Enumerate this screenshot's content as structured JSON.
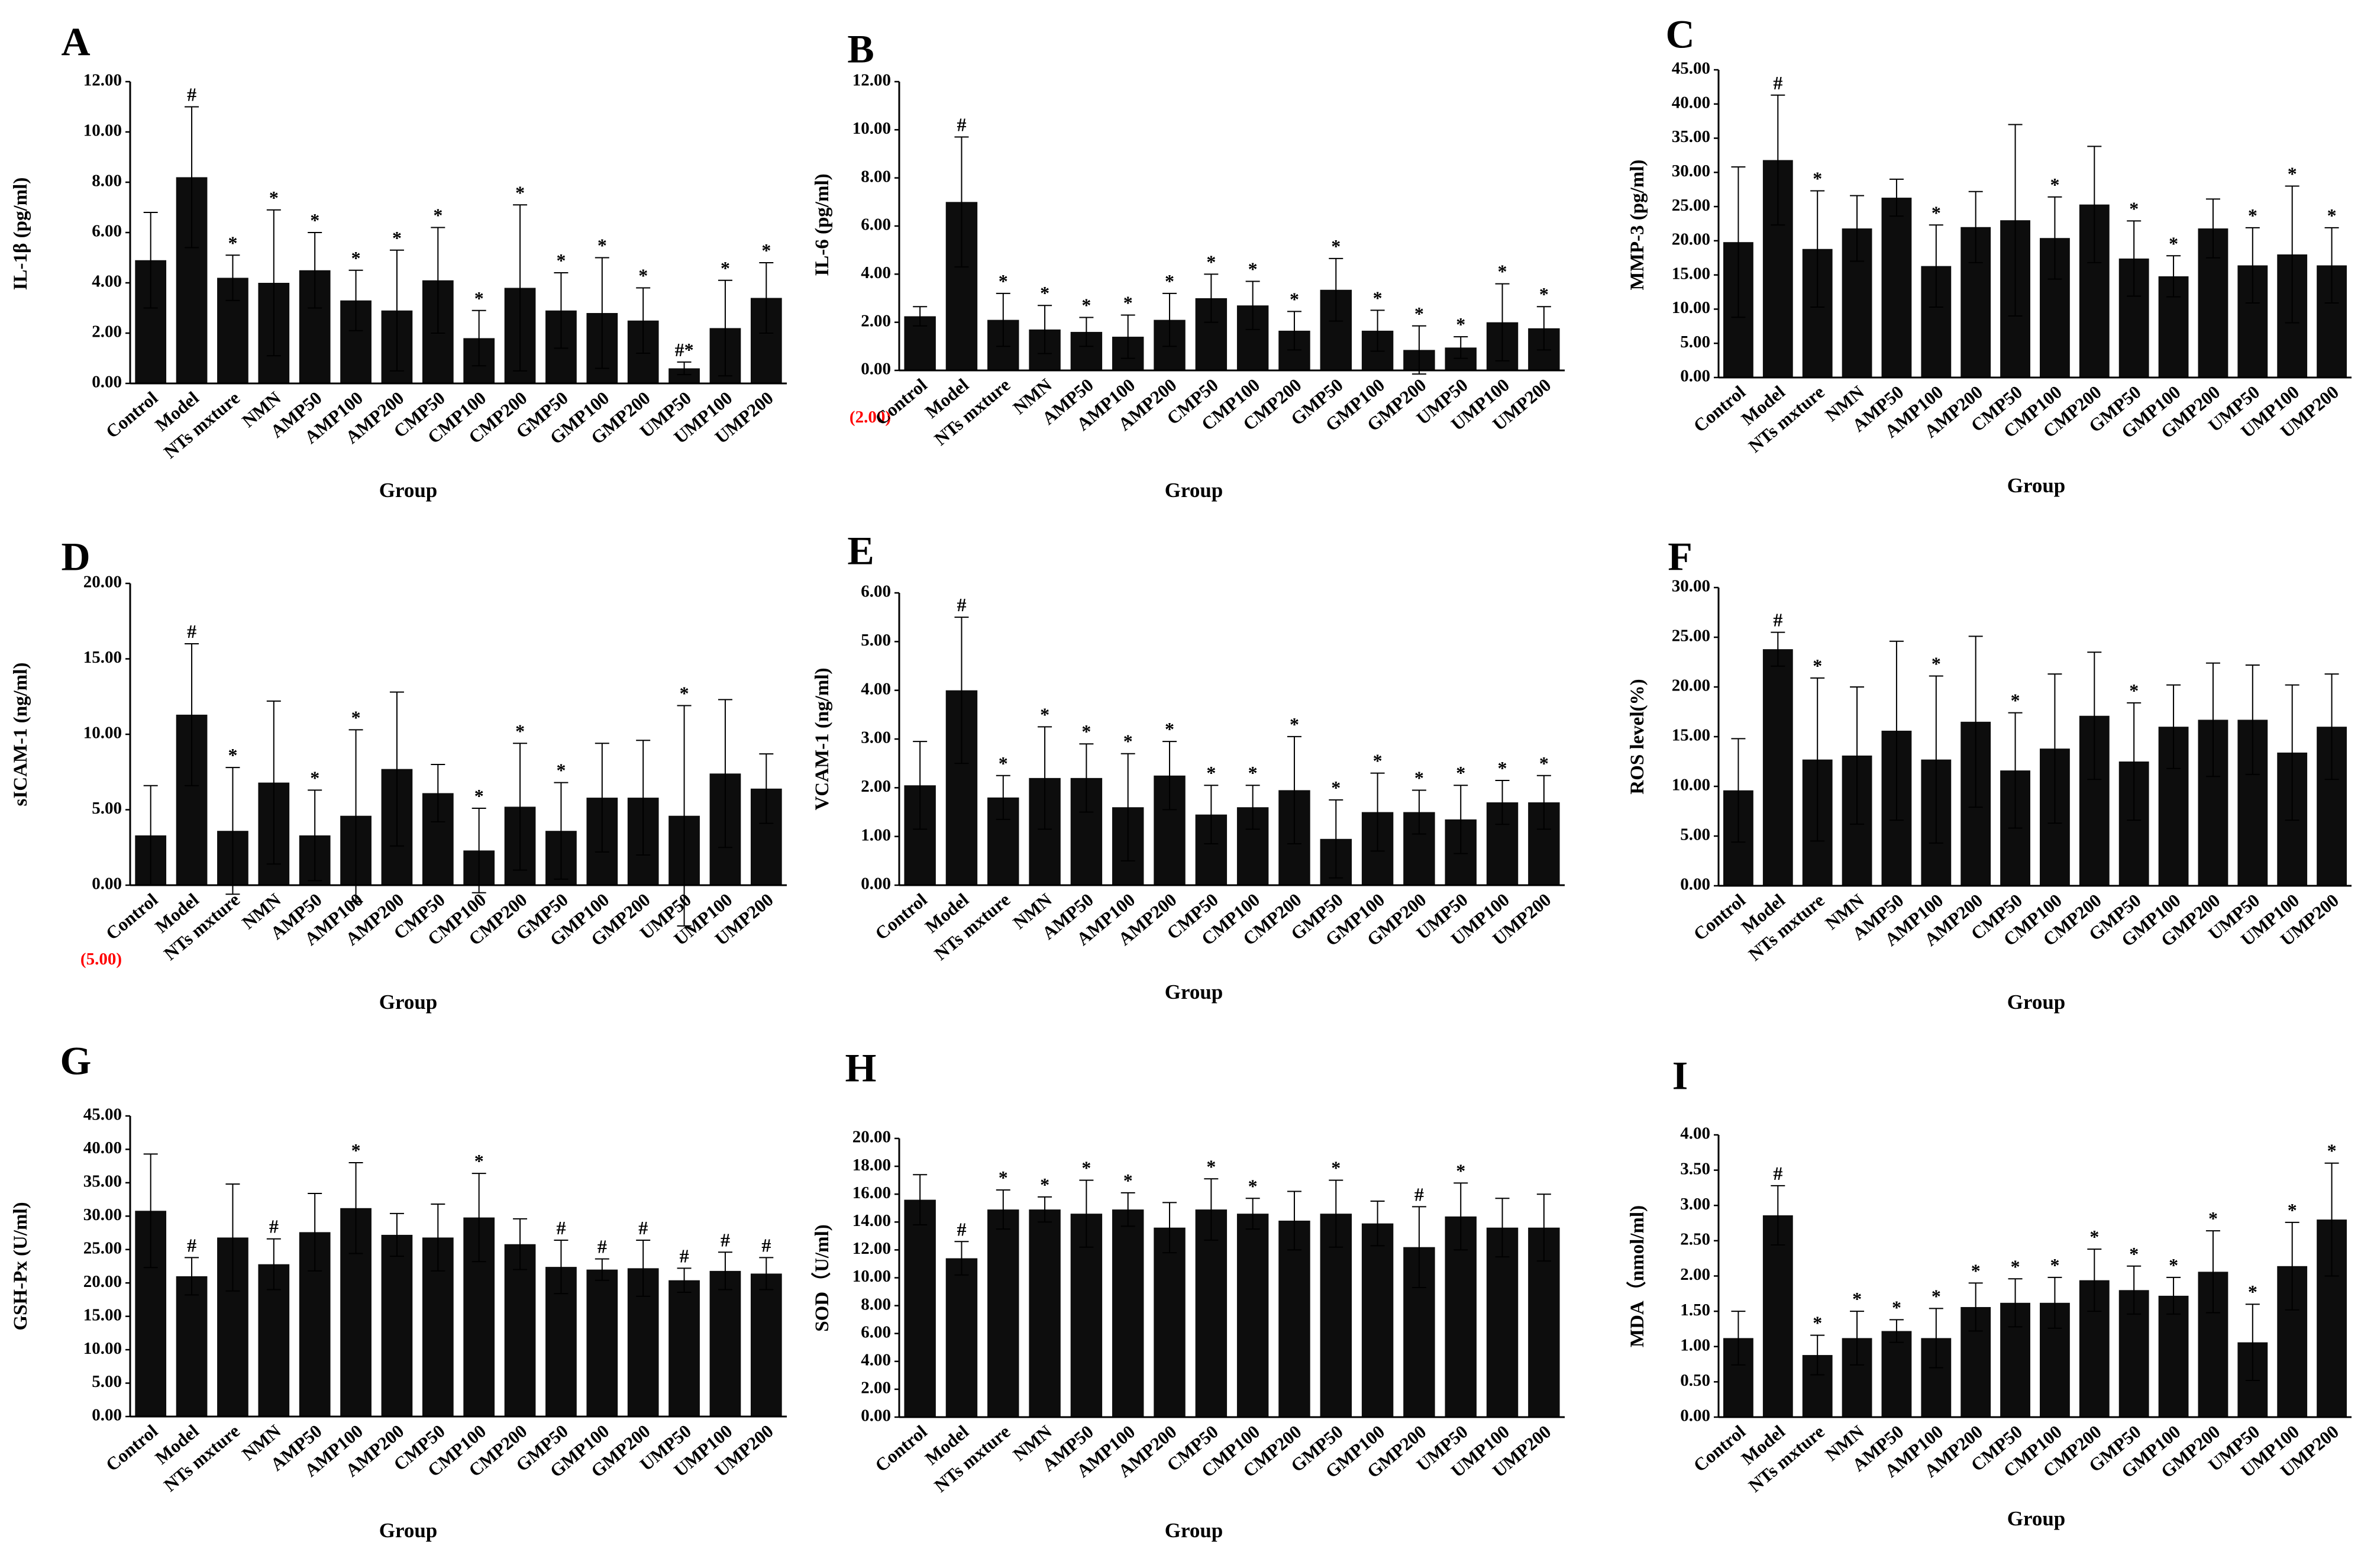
{
  "figure_title": "",
  "chart_data": [
    {
      "panel": "A",
      "type": "bar",
      "title": "",
      "xlabel": "Group",
      "ylabel": "IL-1β (pg/ml)",
      "ylim": [
        0,
        12
      ],
      "yticks": [
        "0.00",
        "2.00",
        "4.00",
        "6.00",
        "8.00",
        "10.00",
        "12.00"
      ],
      "categories": [
        "Control",
        "Model",
        "NTs mxture",
        "NMN",
        "AMP50",
        "AMP100",
        "AMP200",
        "CMP50",
        "CMP100",
        "CMP200",
        "GMP50",
        "GMP100",
        "GMP200",
        "UMP50",
        "UMP100",
        "UMP200"
      ],
      "values": [
        4.9,
        8.2,
        4.2,
        4.0,
        4.5,
        3.3,
        2.9,
        4.1,
        1.8,
        3.8,
        2.9,
        2.8,
        2.5,
        0.6,
        2.2,
        3.4
      ],
      "errors": [
        1.9,
        2.8,
        0.9,
        2.9,
        1.5,
        1.2,
        2.4,
        2.1,
        1.1,
        3.3,
        1.5,
        2.2,
        1.3,
        0.25,
        1.9,
        1.4
      ],
      "marks": [
        "",
        "#",
        "*",
        "*",
        "*",
        "*",
        "*",
        "*",
        "*",
        "*",
        "*",
        "*",
        "*",
        "#*",
        "*",
        "*"
      ]
    },
    {
      "panel": "B",
      "type": "bar",
      "title": "",
      "xlabel": "Group",
      "ylabel": "IL-6 (pg/ml)",
      "ylim": [
        0,
        12
      ],
      "yticks": [
        "0.00",
        "2.00",
        "4.00",
        "6.00",
        "8.00",
        "10.00",
        "12.00"
      ],
      "neg_tick": "(2.00)",
      "categories": [
        "Control",
        "Model",
        "NTs mxture",
        "NMN",
        "AMP50",
        "AMP100",
        "AMP200",
        "CMP50",
        "CMP100",
        "CMP200",
        "GMP50",
        "GMP100",
        "GMP200",
        "UMP50",
        "UMP100",
        "UMP200"
      ],
      "values": [
        2.25,
        7.0,
        2.1,
        1.7,
        1.6,
        1.4,
        2.1,
        3.0,
        2.7,
        1.65,
        3.35,
        1.65,
        0.85,
        0.95,
        2.0,
        1.75
      ],
      "errors": [
        0.4,
        2.7,
        1.1,
        1.0,
        0.6,
        0.9,
        1.1,
        1.0,
        1.0,
        0.8,
        1.3,
        0.85,
        1.0,
        0.45,
        1.6,
        0.9
      ],
      "marks": [
        "",
        "#",
        "*",
        "*",
        "*",
        "*",
        "*",
        "*",
        "*",
        "*",
        "*",
        "*",
        "*",
        "*",
        "*",
        "*"
      ]
    },
    {
      "panel": "C",
      "type": "bar",
      "title": "",
      "xlabel": "Group",
      "ylabel": "MMP-3 (pg/ml)",
      "ylim": [
        0,
        45
      ],
      "yticks": [
        "0.00",
        "5.00",
        "10.00",
        "15.00",
        "20.00",
        "25.00",
        "30.00",
        "35.00",
        "40.00",
        "45.00"
      ],
      "categories": [
        "Control",
        "Model",
        "NTs mxture",
        "NMN",
        "AMP50",
        "AMP100",
        "AMP200",
        "CMP50",
        "CMP100",
        "CMP200",
        "GMP50",
        "GMP100",
        "GMP200",
        "UMP50",
        "UMP100",
        "UMP200"
      ],
      "values": [
        19.8,
        31.8,
        18.8,
        21.8,
        26.3,
        16.3,
        22.0,
        23.0,
        20.4,
        25.3,
        17.4,
        14.8,
        21.8,
        16.4,
        18.0,
        16.4
      ],
      "errors": [
        11.0,
        9.5,
        8.5,
        4.8,
        2.7,
        6.0,
        5.2,
        14.0,
        6.0,
        8.5,
        5.5,
        3.0,
        4.3,
        5.5,
        10.0,
        5.5
      ],
      "marks": [
        "",
        "#",
        "*",
        "",
        "",
        "*",
        "",
        "",
        "*",
        "",
        "*",
        "*",
        "",
        "*",
        "*",
        "*"
      ]
    },
    {
      "panel": "D",
      "type": "bar",
      "title": "",
      "xlabel": "Group",
      "ylabel": "sICAM-1 (ng/ml)",
      "ylim": [
        0,
        20
      ],
      "yticks": [
        "0.00",
        "5.00",
        "10.00",
        "15.00",
        "20.00"
      ],
      "neg_tick": "(5.00)",
      "categories": [
        "Control",
        "Model",
        "NTs mxture",
        "NMN",
        "AMP50",
        "AMP100",
        "AMP200",
        "CMP50",
        "CMP100",
        "CMP200",
        "GMP50",
        "GMP100",
        "GMP200",
        "UMP50",
        "UMP100",
        "UMP200"
      ],
      "values": [
        3.3,
        11.3,
        3.6,
        6.8,
        3.3,
        4.6,
        7.7,
        6.1,
        2.3,
        5.2,
        3.6,
        5.8,
        5.8,
        4.6,
        7.4,
        6.4
      ],
      "errors": [
        3.3,
        4.7,
        4.2,
        5.4,
        3.0,
        5.7,
        5.1,
        1.9,
        2.8,
        4.2,
        3.2,
        3.6,
        3.8,
        7.3,
        4.9,
        2.3
      ],
      "marks": [
        "",
        "#",
        "*",
        "",
        "*",
        "*",
        "",
        "",
        "*",
        "*",
        "*",
        "",
        "",
        "*",
        "",
        ""
      ]
    },
    {
      "panel": "E",
      "type": "bar",
      "title": "",
      "xlabel": "Group",
      "ylabel": "VCAM-1 (ng/ml)",
      "ylim": [
        0,
        6
      ],
      "yticks": [
        "0.00",
        "1.00",
        "2.00",
        "3.00",
        "4.00",
        "5.00",
        "6.00"
      ],
      "categories": [
        "Control",
        "Model",
        "NTs mxture",
        "NMN",
        "AMP50",
        "AMP100",
        "AMP200",
        "CMP50",
        "CMP100",
        "CMP200",
        "GMP50",
        "GMP100",
        "GMP200",
        "UMP50",
        "UMP100",
        "UMP200"
      ],
      "values": [
        2.05,
        4.0,
        1.8,
        2.2,
        2.2,
        1.6,
        2.25,
        1.45,
        1.6,
        1.95,
        0.95,
        1.5,
        1.5,
        1.35,
        1.7,
        1.7
      ],
      "errors": [
        0.9,
        1.5,
        0.45,
        1.05,
        0.7,
        1.1,
        0.7,
        0.6,
        0.45,
        1.1,
        0.8,
        0.8,
        0.45,
        0.7,
        0.45,
        0.55
      ],
      "marks": [
        "",
        "#",
        "*",
        "*",
        "*",
        "*",
        "*",
        "*",
        "*",
        "*",
        "*",
        "*",
        "*",
        "*",
        "*",
        "*"
      ]
    },
    {
      "panel": "F",
      "type": "bar",
      "title": "",
      "xlabel": "Group",
      "ylabel": "ROS level(%)",
      "ylim": [
        0,
        30
      ],
      "yticks": [
        "0.00",
        "5.00",
        "10.00",
        "15.00",
        "20.00",
        "25.00",
        "30.00"
      ],
      "categories": [
        "Control",
        "Model",
        "NTs mxture",
        "NMN",
        "AMP50",
        "AMP100",
        "AMP200",
        "CMP50",
        "CMP100",
        "CMP200",
        "GMP50",
        "GMP100",
        "GMP200",
        "UMP50",
        "UMP100",
        "UMP200"
      ],
      "values": [
        9.6,
        23.8,
        12.7,
        13.1,
        15.6,
        12.7,
        16.5,
        11.6,
        13.8,
        17.1,
        12.5,
        16.0,
        16.7,
        16.7,
        13.4,
        16.0
      ],
      "errors": [
        5.2,
        1.7,
        8.2,
        6.9,
        9.0,
        8.4,
        8.6,
        5.8,
        7.5,
        6.4,
        5.9,
        4.2,
        5.7,
        5.5,
        6.8,
        5.3
      ],
      "marks": [
        "",
        "#",
        "*",
        "",
        "",
        "*",
        "",
        "*",
        "",
        "",
        "*",
        "",
        "",
        "",
        "",
        ""
      ]
    },
    {
      "panel": "G",
      "type": "bar",
      "title": "",
      "xlabel": "Group",
      "ylabel": "GSH-Px (U/ml)",
      "ylim": [
        0,
        45
      ],
      "yticks": [
        "0.00",
        "5.00",
        "10.00",
        "15.00",
        "20.00",
        "25.00",
        "30.00",
        "35.00",
        "40.00",
        "45.00"
      ],
      "categories": [
        "Control",
        "Model",
        "NTs mxture",
        "NMN",
        "AMP50",
        "AMP100",
        "AMP200",
        "CMP50",
        "CMP100",
        "CMP200",
        "GMP50",
        "GMP100",
        "GMP200",
        "UMP50",
        "UMP100",
        "UMP200"
      ],
      "values": [
        30.8,
        21.0,
        26.8,
        22.8,
        27.6,
        31.2,
        27.2,
        26.8,
        29.8,
        25.8,
        22.4,
        22.0,
        22.2,
        20.4,
        21.8,
        21.4
      ],
      "errors": [
        8.5,
        2.8,
        8.0,
        3.8,
        5.8,
        6.8,
        3.2,
        5.0,
        6.6,
        3.8,
        4.0,
        1.6,
        4.2,
        1.8,
        2.8,
        2.4
      ],
      "marks": [
        "",
        "#",
        "",
        "#",
        "",
        "*",
        "",
        "",
        "*",
        "",
        "#",
        "#",
        "#",
        "#",
        "#",
        "#"
      ]
    },
    {
      "panel": "H",
      "type": "bar",
      "title": "",
      "xlabel": "Group",
      "ylabel": "SOD（U/ml)",
      "ylim": [
        0,
        20
      ],
      "yticks": [
        "0.00",
        "2.00",
        "4.00",
        "6.00",
        "8.00",
        "10.00",
        "12.00",
        "14.00",
        "16.00",
        "18.00",
        "20.00"
      ],
      "categories": [
        "Control",
        "Model",
        "NTs mxture",
        "NMN",
        "AMP50",
        "AMP100",
        "AMP200",
        "CMP50",
        "CMP100",
        "CMP200",
        "GMP50",
        "GMP100",
        "GMP200",
        "UMP50",
        "UMP100",
        "UMP200"
      ],
      "values": [
        15.6,
        11.4,
        14.9,
        14.9,
        14.6,
        14.9,
        13.6,
        14.9,
        14.6,
        14.1,
        14.6,
        13.9,
        12.2,
        14.4,
        13.6,
        13.6
      ],
      "errors": [
        1.8,
        1.2,
        1.4,
        0.9,
        2.4,
        1.2,
        1.8,
        2.2,
        1.1,
        2.1,
        2.4,
        1.6,
        2.9,
        2.4,
        2.1,
        2.4
      ],
      "marks": [
        "",
        "#",
        "*",
        "*",
        "*",
        "*",
        "",
        "*",
        "*",
        "",
        "*",
        "",
        "#",
        "*",
        "",
        ""
      ]
    },
    {
      "panel": "I",
      "type": "bar",
      "title": "",
      "xlabel": "Group",
      "ylabel": "MDA（nmol/ml)",
      "ylim": [
        0,
        4
      ],
      "yticks": [
        "0.00",
        "0.50",
        "1.00",
        "1.50",
        "2.00",
        "2.50",
        "3.00",
        "3.50",
        "4.00"
      ],
      "categories": [
        "Control",
        "Model",
        "NTs mxture",
        "NMN",
        "AMP50",
        "AMP100",
        "AMP200",
        "CMP50",
        "CMP100",
        "CMP200",
        "GMP50",
        "GMP100",
        "GMP200",
        "UMP50",
        "UMP100",
        "UMP200"
      ],
      "values": [
        1.12,
        2.86,
        0.88,
        1.12,
        1.22,
        1.12,
        1.56,
        1.62,
        1.62,
        1.94,
        1.8,
        1.72,
        2.06,
        1.06,
        2.14,
        2.8
      ],
      "errors": [
        0.38,
        0.42,
        0.28,
        0.38,
        0.16,
        0.42,
        0.34,
        0.34,
        0.36,
        0.44,
        0.34,
        0.26,
        0.58,
        0.54,
        0.62,
        0.8
      ],
      "marks": [
        "",
        "#",
        "*",
        "*",
        "*",
        "*",
        "*",
        "*",
        "*",
        "*",
        "*",
        "*",
        "*",
        "*",
        "*",
        "*"
      ]
    }
  ]
}
